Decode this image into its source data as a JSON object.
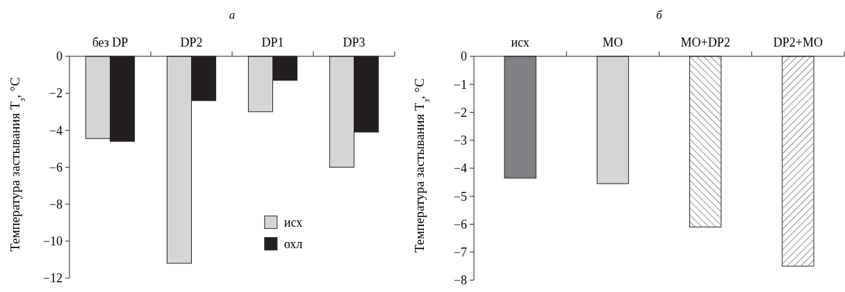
{
  "chart_data": [
    {
      "type": "bar",
      "title": "а",
      "ylabel": "Температура застывания T$_{з}$, °C",
      "categories": [
        "без DP",
        "DP2",
        "DP1",
        "DP3"
      ],
      "series": [
        {
          "name": "исх",
          "color": "#d4d5d7",
          "values": [
            -4.45,
            -11.2,
            -3.0,
            -6.0
          ]
        },
        {
          "name": "охл",
          "color": "#231f20",
          "values": [
            -4.6,
            -2.4,
            -1.3,
            -4.1
          ]
        }
      ],
      "ylim": [
        -12,
        0
      ],
      "yticks": [
        0,
        {
          "value": -2,
          "label": "−2"
        },
        {
          "value": -4,
          "label": "−4"
        },
        {
          "value": -6,
          "label": "−6"
        },
        {
          "value": -8,
          "label": "−8"
        },
        {
          "value": -10,
          "label": "−10"
        },
        {
          "value": -12,
          "label": "−12"
        }
      ],
      "legend": "bottom right"
    },
    {
      "type": "bar",
      "title": "б",
      "ylabel": "Температура застывания T$_{з}$, °C",
      "categories": [
        "исх",
        "МО",
        "МО+DP2",
        "DP2+МО"
      ],
      "values": [
        -4.35,
        -4.55,
        -6.1,
        -7.5
      ],
      "colors": [
        "#808085",
        "#d4d5d7",
        "#ffffff",
        "#ffffff"
      ],
      "ylim": [
        -8,
        0
      ],
      "yticks": [
        0,
        {
          "value": -1,
          "label": "−1"
        },
        {
          "value": -2,
          "label": "−2"
        },
        {
          "value": -3,
          "label": "−3"
        },
        {
          "value": -4,
          "label": "−4"
        },
        {
          "value": -5,
          "label": "−5"
        },
        {
          "value": -6,
          "label": "−6"
        },
        {
          "value": -7,
          "label": "−7"
        },
        {
          "value": -8,
          "label": "−8"
        }
      ],
      "legend": false
    }
  ]
}
